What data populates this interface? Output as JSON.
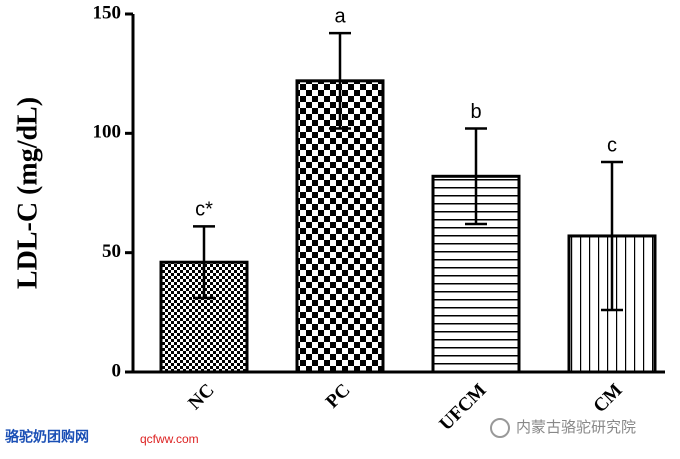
{
  "chart_data": {
    "type": "bar",
    "ylabel": "LDL-C (mg/dL)",
    "categories": [
      "NC",
      "PC",
      "UFCM",
      "CM"
    ],
    "values": [
      46,
      122,
      82,
      57
    ],
    "errors": [
      15,
      20,
      20,
      31
    ],
    "labels": [
      "c*",
      "a",
      "b",
      "c"
    ],
    "color": "#000000",
    "ylim": [
      0,
      150
    ],
    "yticks": [
      0,
      50,
      100,
      150
    ],
    "grid": false
  },
  "watermark": {
    "site": "骆驼奶团购网",
    "url": "qcfww.com",
    "account": "内蒙古骆驼研究院"
  }
}
